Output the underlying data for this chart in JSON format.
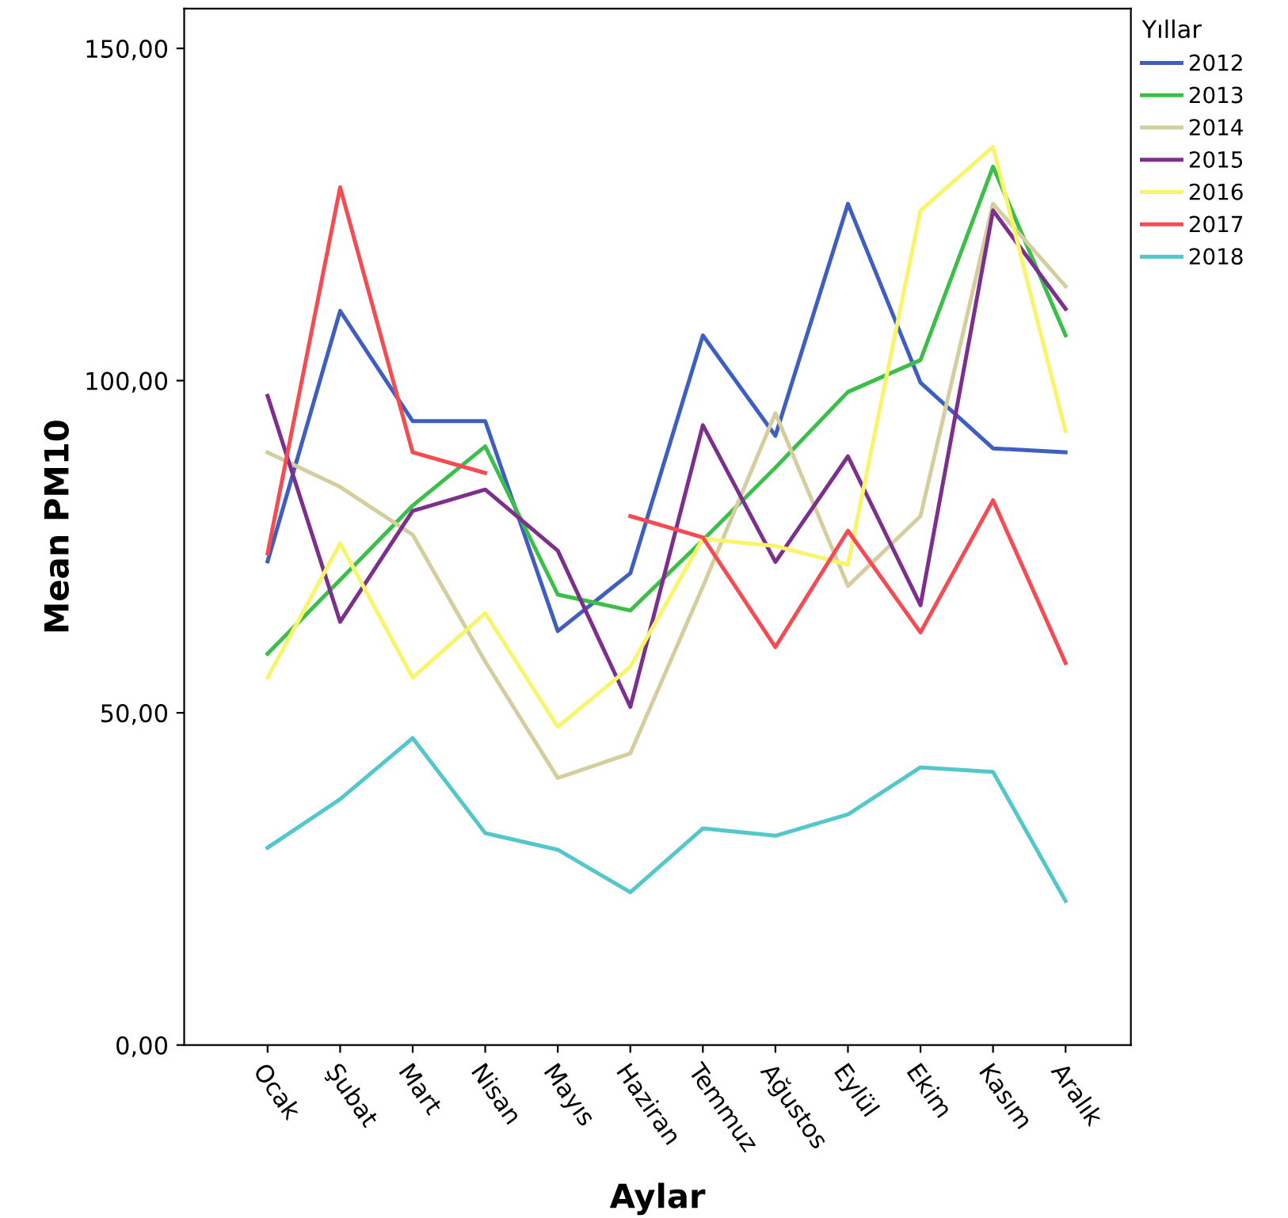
{
  "chart_data": {
    "type": "line",
    "xlabel": "Aylar",
    "ylabel": "Mean PM10",
    "legend_title": "Yıllar",
    "legend": "top right",
    "grid": false,
    "marker": "none",
    "line_style": "solid",
    "categories": [
      "Ocak",
      "Şubat",
      "Mart",
      "Nisan",
      "Mayıs",
      "Haziran",
      "Temmuz",
      "Ağustos",
      "Eylül",
      "Ekim",
      "Kasım",
      "Aralık"
    ],
    "ylim": [
      0,
      156
    ],
    "yticks": [
      {
        "value": 0,
        "label": "0,00"
      },
      {
        "value": 50,
        "label": "50,00"
      },
      {
        "value": 100,
        "label": "100,00"
      },
      {
        "value": 150,
        "label": "150,00"
      }
    ],
    "series": [
      {
        "name": "2012",
        "color": "#3e5fc1",
        "values": [
          72.8,
          110.5,
          93.9,
          93.9,
          62.3,
          71.0,
          106.8,
          91.7,
          126.6,
          99.7,
          89.8,
          89.2
        ]
      },
      {
        "name": "2013",
        "color": "#3cbf49",
        "values": [
          58.9,
          70.0,
          81.2,
          90.1,
          67.8,
          65.4,
          76.0,
          86.9,
          98.3,
          103.1,
          132.2,
          106.8
        ]
      },
      {
        "name": "2014",
        "color": "#d4ce9f",
        "values": [
          89.2,
          84.0,
          76.8,
          57.7,
          40.2,
          43.9,
          69.0,
          95.1,
          69.1,
          79.6,
          126.6,
          114.2
        ]
      },
      {
        "name": "2015",
        "color": "#7d2f8e",
        "values": [
          97.7,
          63.7,
          80.4,
          83.6,
          74.4,
          50.9,
          93.3,
          72.7,
          88.6,
          66.2,
          125.6,
          110.8
        ]
      },
      {
        "name": "2016",
        "color": "#f8f56a",
        "values": [
          55.3,
          75.5,
          55.3,
          65.0,
          47.9,
          56.9,
          76.2,
          75.1,
          72.3,
          125.6,
          135.2,
          92.4
        ]
      },
      {
        "name": "2017",
        "color": "#f54b52",
        "values": [
          74.0,
          129.1,
          89.2,
          86.1,
          null,
          79.6,
          76.4,
          59.9,
          77.4,
          62.1,
          82.0,
          57.5
        ]
      },
      {
        "name": "2018",
        "color": "#54c7cb",
        "values": [
          29.7,
          37.0,
          46.2,
          31.9,
          29.4,
          23.0,
          32.6,
          31.5,
          34.7,
          41.8,
          41.1,
          21.7
        ]
      }
    ]
  }
}
